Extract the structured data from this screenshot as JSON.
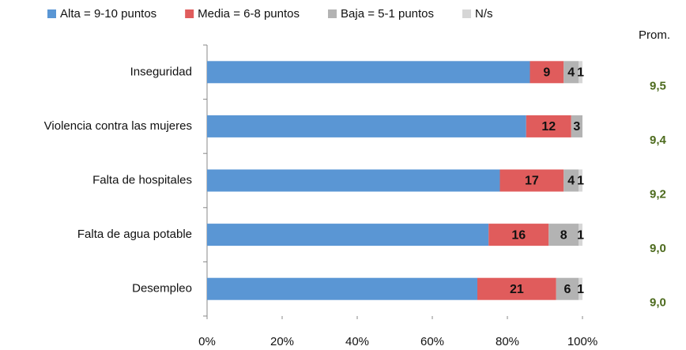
{
  "chart_data": {
    "type": "stacked-barh",
    "categories": [
      "Inseguridad",
      "Violencia contra  las mujeres",
      "Falta de hospitales",
      "Falta de agua potable",
      "Desempleo"
    ],
    "series": [
      {
        "name": "Alta = 9-10 puntos",
        "color": "#5a96d4",
        "values": [
          86,
          85,
          78,
          75,
          72
        ],
        "show_labels": false
      },
      {
        "name": "Media = 6-8 puntos",
        "color": "#e05c5c",
        "values": [
          9,
          12,
          17,
          16,
          21
        ],
        "show_labels": true
      },
      {
        "name": "Baja = 5-1 puntos",
        "color": "#b3b3b3",
        "values": [
          4,
          3,
          4,
          8,
          6
        ],
        "show_labels": true
      },
      {
        "name": "N/s",
        "color": "#d6d6d6",
        "values": [
          1,
          null,
          1,
          1,
          1
        ],
        "show_labels": true
      }
    ],
    "xlim": [
      0,
      100
    ],
    "xticks": [
      {
        "value": 0,
        "label": "0%"
      },
      {
        "value": 20,
        "label": "20%"
      },
      {
        "value": 40,
        "label": "40%"
      },
      {
        "value": 60,
        "label": "60%"
      },
      {
        "value": 80,
        "label": "80%"
      },
      {
        "value": 100,
        "label": "100%"
      }
    ],
    "legend": "top",
    "averages": {
      "title": "Prom.",
      "labels": [
        "9,5",
        "9,4",
        "9,2",
        "9,0",
        "9,0"
      ]
    }
  }
}
